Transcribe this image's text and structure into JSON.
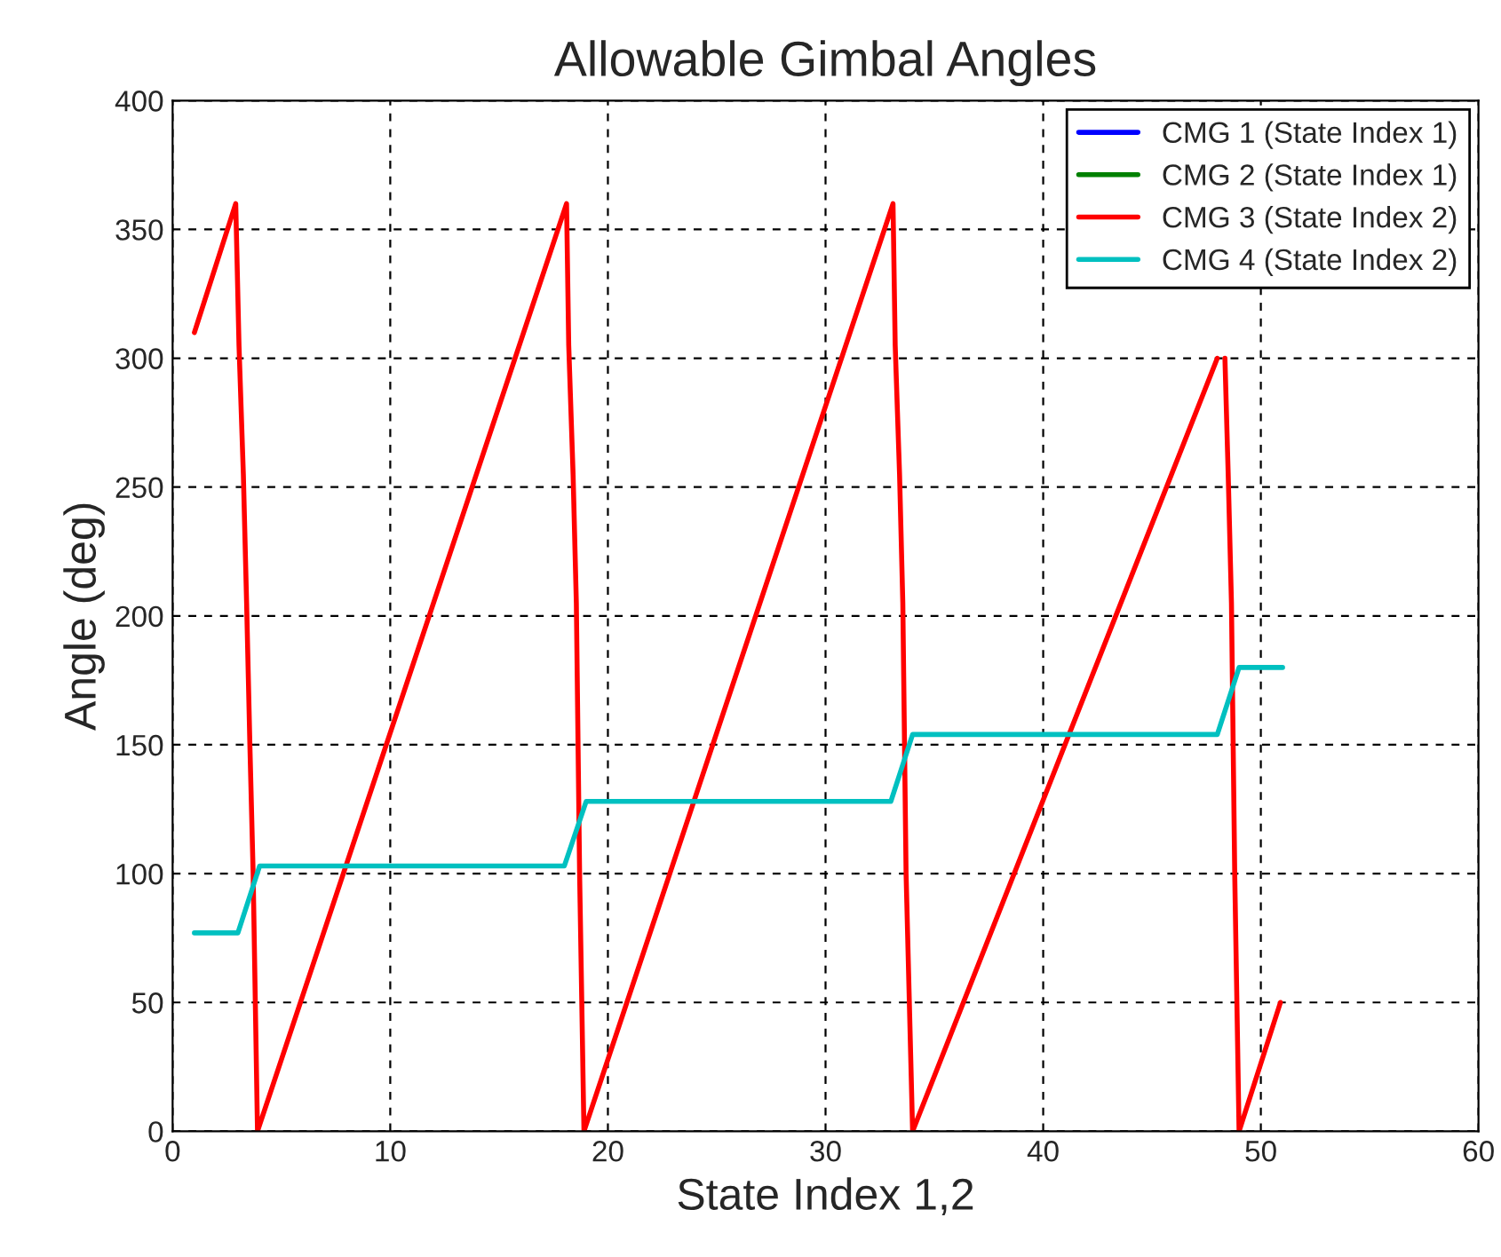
{
  "chart_data": {
    "type": "line",
    "title": "Allowable Gimbal Angles",
    "xlabel": "State Index 1,2",
    "ylabel": "Angle (deg)",
    "xlim": [
      0,
      60
    ],
    "xticks": [
      0,
      10,
      20,
      30,
      40,
      50,
      60
    ],
    "ylim": [
      0,
      400
    ],
    "yticks": [
      0,
      50,
      100,
      150,
      200,
      250,
      300,
      350,
      400
    ],
    "grid": true,
    "legend": "top right",
    "series": [
      {
        "name": "CMG 1 (State Index 1)",
        "color": "#0000ff"
      },
      {
        "name": "CMG 2 (State Index 1)",
        "color": "#008000"
      },
      {
        "name": "CMG 3 (State Index 2)",
        "color": "#ff0000",
        "x": [
          1,
          2.9,
          3.05,
          3.25,
          3.4,
          3.55,
          3.7,
          3.9,
          18.1,
          18.2,
          18.4,
          18.55,
          18.7,
          18.9,
          33.1,
          33.2,
          33.4,
          33.55,
          33.7,
          34.0,
          48.0,
          48.2,
          48.35,
          48.5,
          48.65,
          48.8,
          49.0,
          50.9
        ],
        "values": [
          310,
          360,
          305,
          255,
          205,
          150,
          100,
          0,
          360,
          305,
          255,
          205,
          100,
          0,
          360,
          305,
          255,
          205,
          100,
          0,
          300,
          null,
          300,
          255,
          205,
          100,
          0,
          50
        ]
      },
      {
        "name": "CMG 4 (State Index 2)",
        "color": "#00c0c0",
        "x": [
          1,
          3,
          4,
          18,
          19,
          33,
          34,
          48,
          49,
          51
        ],
        "values": [
          77,
          77,
          103,
          103,
          128,
          128,
          154,
          154,
          180,
          180
        ]
      }
    ]
  }
}
